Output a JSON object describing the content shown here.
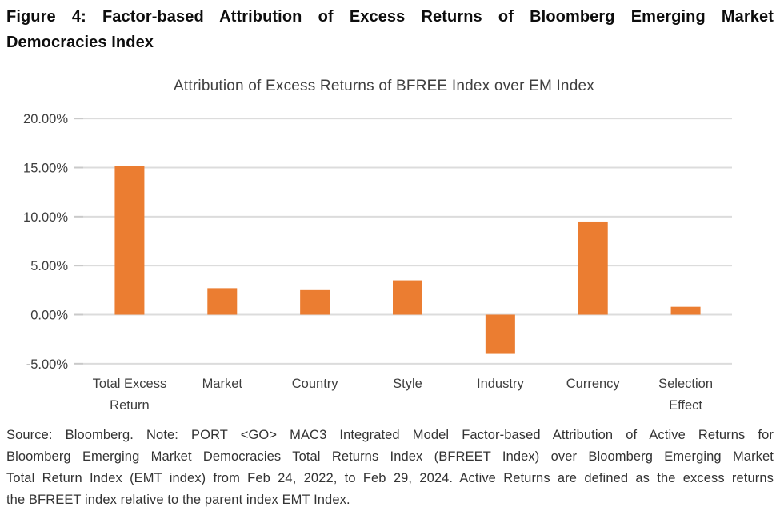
{
  "figure_title": {
    "lines": [
      "Figure 4: Factor-based Attribution of Excess Returns of Bloomberg Emerging Market",
      "Democracies Index"
    ]
  },
  "chart_data": {
    "type": "bar",
    "title": "Attribution of Excess Returns of BFREE Index over EM Index",
    "categories": [
      [
        "Total Excess",
        "Return"
      ],
      [
        "Market"
      ],
      [
        "Country"
      ],
      [
        "Style"
      ],
      [
        "Industry"
      ],
      [
        "Currency"
      ],
      [
        "Selection",
        "Effect"
      ]
    ],
    "values": [
      15.2,
      2.7,
      2.5,
      3.5,
      -4.0,
      9.5,
      0.8
    ],
    "unit": "%",
    "xlabel": "",
    "ylabel": "",
    "ylim": [
      -5,
      20
    ],
    "y_ticks": [
      {
        "value": 20,
        "label": "20.00%"
      },
      {
        "value": 15,
        "label": "15.00%"
      },
      {
        "value": 10,
        "label": "10.00%"
      },
      {
        "value": 5,
        "label": "5.00%"
      },
      {
        "value": 0,
        "label": "0.00%"
      },
      {
        "value": -5,
        "label": "-5.00%"
      }
    ],
    "grid": true,
    "legend": "none",
    "bar_color": "#EB7D31",
    "gridline_color": "#DCDCDC",
    "tick_color": "#C9C9C9",
    "axis_text_color": "#3E3E3E"
  },
  "footnote": {
    "lines": [
      "Source: Bloomberg. Note: PORT <GO> MAC3 Integrated Model Factor-based Attribution of Active Returns for",
      "Bloomberg Emerging Market Democracies Total Returns Index (BFREET Index) over Bloomberg Emerging Market",
      "Total Return Index (EMT index) from Feb 24, 2022, to Feb 29, 2024. Active Returns are defined as the excess returns",
      "the BFREET index relative to the parent index EMT Index."
    ]
  }
}
